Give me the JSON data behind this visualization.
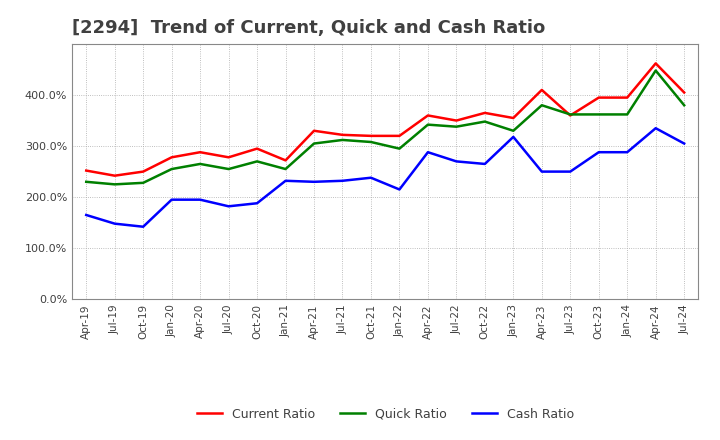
{
  "title": "[2294]  Trend of Current, Quick and Cash Ratio",
  "title_fontsize": 13,
  "background_color": "#ffffff",
  "plot_background": "#ffffff",
  "grid_color": "#aaaaaa",
  "ylim": [
    0,
    5.0
  ],
  "yticks": [
    0.0,
    1.0,
    2.0,
    3.0,
    4.0,
    5.0
  ],
  "ytick_labels": [
    "0.0%",
    "100.0%",
    "200.0%",
    "300.0%",
    "400.0%",
    ""
  ],
  "dates": [
    "Apr-19",
    "Jul-19",
    "Oct-19",
    "Jan-20",
    "Apr-20",
    "Jul-20",
    "Oct-20",
    "Jan-21",
    "Apr-21",
    "Jul-21",
    "Oct-21",
    "Jan-22",
    "Apr-22",
    "Jul-22",
    "Oct-22",
    "Jan-23",
    "Apr-23",
    "Jul-23",
    "Oct-23",
    "Jan-24",
    "Apr-24",
    "Jul-24"
  ],
  "current_ratio": [
    2.52,
    2.42,
    2.5,
    2.78,
    2.88,
    2.78,
    2.95,
    2.72,
    3.3,
    3.22,
    3.2,
    3.2,
    3.6,
    3.5,
    3.65,
    3.55,
    4.1,
    3.6,
    3.95,
    3.95,
    4.62,
    4.05
  ],
  "quick_ratio": [
    2.3,
    2.25,
    2.28,
    2.55,
    2.65,
    2.55,
    2.7,
    2.55,
    3.05,
    3.12,
    3.08,
    2.95,
    3.42,
    3.38,
    3.48,
    3.3,
    3.8,
    3.62,
    3.62,
    3.62,
    4.48,
    3.8
  ],
  "cash_ratio": [
    1.65,
    1.48,
    1.42,
    1.95,
    1.95,
    1.82,
    1.88,
    2.32,
    2.3,
    2.32,
    2.38,
    2.15,
    2.88,
    2.7,
    2.65,
    3.18,
    2.5,
    2.5,
    2.88,
    2.88,
    3.35,
    3.05
  ],
  "current_color": "#ff0000",
  "quick_color": "#008000",
  "cash_color": "#0000ff",
  "line_width": 1.8,
  "legend_labels": [
    "Current Ratio",
    "Quick Ratio",
    "Cash Ratio"
  ]
}
